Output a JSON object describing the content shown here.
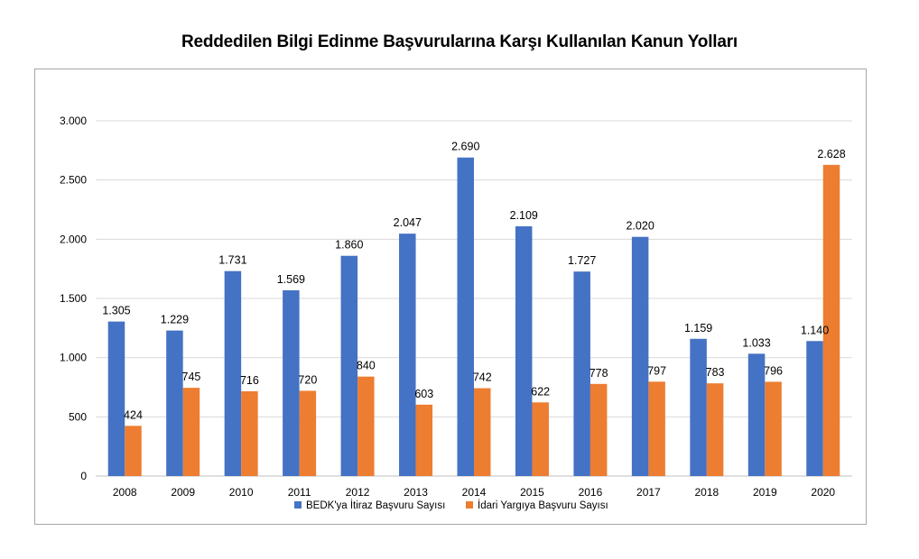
{
  "chart_data": {
    "type": "bar",
    "title": "Reddedilen Bilgi Edinme Başvurularına Karşı Kullanılan Kanun Yolları",
    "categories": [
      "2008",
      "2009",
      "2010",
      "2011",
      "2012",
      "2013",
      "2014",
      "2015",
      "2016",
      "2017",
      "2018",
      "2019",
      "2020"
    ],
    "series": [
      {
        "name": "BEDK'ya İtiraz Başvuru Sayısı",
        "color": "#4472c4",
        "values": [
          1305,
          1229,
          1731,
          1569,
          1860,
          2047,
          2690,
          2109,
          1727,
          2020,
          1159,
          1033,
          1140
        ],
        "labels": [
          "1.305",
          "1.229",
          "1.731",
          "1.569",
          "1.860",
          "2.047",
          "2.690",
          "2.109",
          "1.727",
          "2.020",
          "1.159",
          "1.033",
          "1.140"
        ]
      },
      {
        "name": "İdari Yargıya Başvuru Sayısı",
        "color": "#ed7d31",
        "values": [
          424,
          745,
          716,
          720,
          840,
          603,
          742,
          622,
          778,
          797,
          783,
          796,
          2628
        ],
        "labels": [
          "424",
          "745",
          "716",
          "720",
          "840",
          "603",
          "742",
          "622",
          "778",
          "797",
          "783",
          "796",
          "2.628"
        ]
      }
    ],
    "ylim": [
      0,
      3000
    ],
    "yticks": [
      0,
      500,
      1000,
      1500,
      2000,
      2500,
      3000
    ],
    "ytick_labels": [
      "0",
      "500",
      "1.000",
      "1.500",
      "2.000",
      "2.500",
      "3.000"
    ],
    "grid": true,
    "legend_position": "bottom"
  }
}
